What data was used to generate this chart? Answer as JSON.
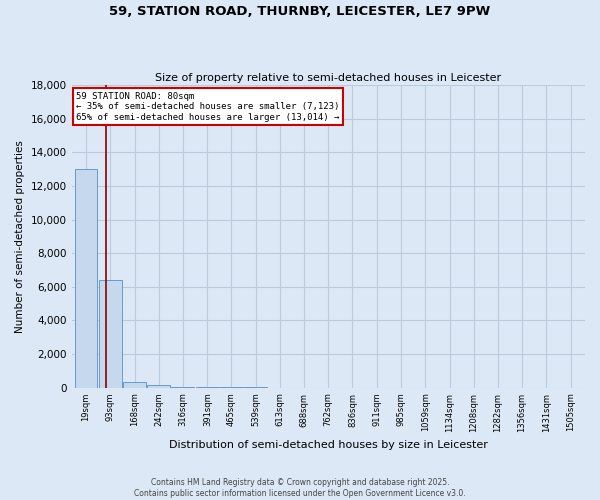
{
  "title": "59, STATION ROAD, THURNBY, LEICESTER, LE7 9PW",
  "subtitle": "Size of property relative to semi-detached houses in Leicester",
  "xlabel": "Distribution of semi-detached houses by size in Leicester",
  "ylabel": "Number of semi-detached properties",
  "property_size": 80,
  "annotation_text_line1": "59 STATION ROAD: 80sqm",
  "annotation_text_line2": "← 35% of semi-detached houses are smaller (7,123)",
  "annotation_text_line3": "65% of semi-detached houses are larger (13,014) →",
  "bins": [
    19,
    93,
    168,
    242,
    316,
    391,
    465,
    539,
    613,
    688,
    762,
    836,
    911,
    985,
    1059,
    1134,
    1208,
    1282,
    1356,
    1431,
    1505
  ],
  "counts": [
    13014,
    6400,
    350,
    150,
    60,
    35,
    20,
    12,
    8,
    5,
    4,
    3,
    2,
    2,
    1,
    1,
    1,
    1,
    1,
    0,
    0
  ],
  "bar_color": "#c5d8ed",
  "bar_edge_color": "#6699cc",
  "line_color": "#8b0000",
  "annotation_box_edgecolor": "#cc0000",
  "background_color": "#dce8f5",
  "grid_color": "#b8ccdd",
  "footer_text": "Contains HM Land Registry data © Crown copyright and database right 2025.\nContains public sector information licensed under the Open Government Licence v3.0.",
  "ylim": [
    0,
    18000
  ],
  "yticks": [
    0,
    2000,
    4000,
    6000,
    8000,
    10000,
    12000,
    14000,
    16000,
    18000
  ]
}
